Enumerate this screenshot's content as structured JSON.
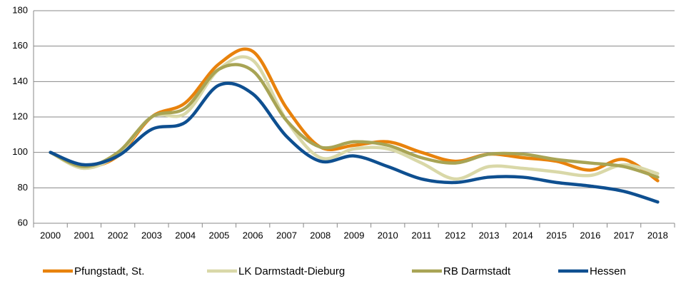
{
  "chart_data": {
    "type": "line",
    "categories": [
      "2000",
      "2001",
      "2002",
      "2003",
      "2004",
      "2005",
      "2006",
      "2007",
      "2008",
      "2009",
      "2010",
      "2011",
      "2012",
      "2013",
      "2014",
      "2015",
      "2016",
      "2017",
      "2018"
    ],
    "series": [
      {
        "name": "Pfungstadt, St.",
        "color": "#e8820c",
        "values": [
          100,
          92,
          98,
          120,
          128,
          150,
          157,
          125,
          103,
          104,
          106,
          100,
          95,
          99,
          97,
          95,
          90,
          96,
          84
        ]
      },
      {
        "name": "LK Darmstadt-Dieburg",
        "color": "#d9d8a8",
        "values": [
          100,
          91,
          99,
          120,
          122,
          147,
          152,
          118,
          97,
          102,
          102,
          94,
          85,
          92,
          91,
          89,
          87,
          93,
          88
        ]
      },
      {
        "name": "RB Darmstadt",
        "color": "#a8a455",
        "values": [
          100,
          92,
          100,
          120,
          125,
          147,
          146,
          118,
          103,
          106,
          104,
          97,
          94,
          99,
          99,
          96,
          94,
          92,
          86
        ]
      },
      {
        "name": "Hessen",
        "color": "#0e4f90",
        "values": [
          100,
          93,
          98,
          113,
          117,
          138,
          133,
          109,
          95,
          98,
          92,
          85,
          83,
          86,
          86,
          83,
          81,
          78,
          72
        ]
      }
    ],
    "ylim": [
      60,
      180
    ],
    "yticks": [
      60,
      80,
      100,
      120,
      140,
      160,
      180
    ],
    "grid": true,
    "legend": "bottom"
  }
}
